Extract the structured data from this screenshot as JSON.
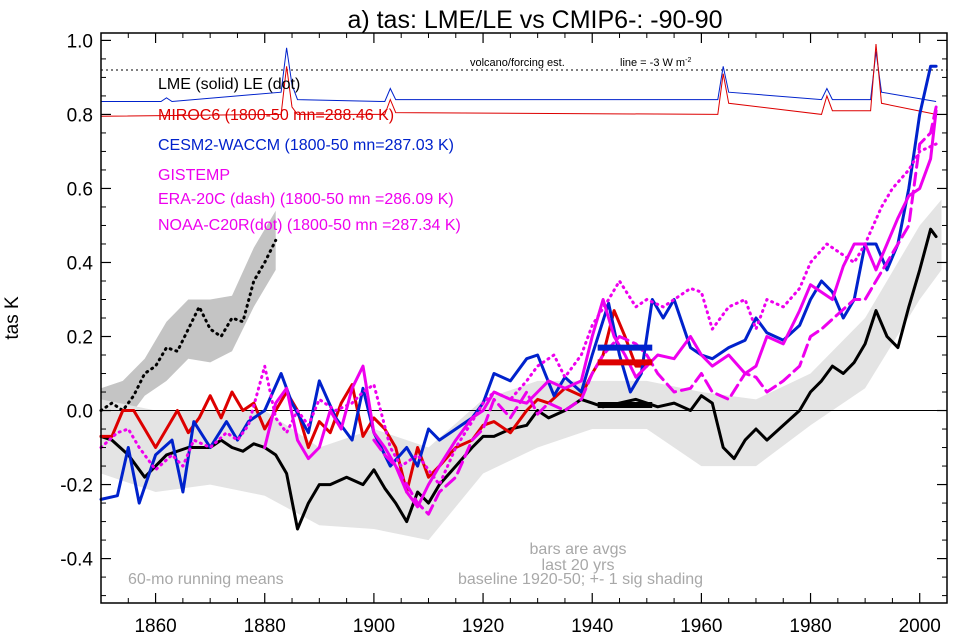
{
  "chart_data": {
    "type": "line",
    "title": "a) tas: LME/LE vs CMIP6-: -90-90",
    "xlabel": "",
    "ylabel": "tas K",
    "xlim": [
      1850,
      2005
    ],
    "ylim": [
      -0.52,
      1.02
    ],
    "x_ticks": [
      1860,
      1880,
      1900,
      1920,
      1940,
      1960,
      1980,
      2000
    ],
    "x_tick_labels": [
      "1860",
      "1880",
      "1900",
      "1920",
      "1940",
      "1960",
      "1980",
      "2000"
    ],
    "y_ticks": [
      -0.4,
      -0.2,
      0.0,
      0.2,
      0.4,
      0.6,
      0.8,
      1.0
    ],
    "y_tick_labels": [
      "-0.4",
      "-0.2",
      "0.0",
      "0.2",
      "0.4",
      "0.6",
      "0.8",
      "1.0"
    ],
    "legend": [
      {
        "text": "LME (solid)   LE (dot)",
        "color": "#000000"
      },
      {
        "text": "MIROC6 (1800-50 mn=288.46 K)",
        "color": "#dd0000"
      },
      {
        "text": "CESM2-WACCM (1800-50 mn=287.03 K)",
        "color": "#0022cc"
      },
      {
        "text": "GISTEMP",
        "color": "#ee00ee"
      },
      {
        "text": "ERA-20C (dash) (1800-50 mn =286.09 K)",
        "color": "#ee00ee"
      },
      {
        "text": "NOAA-C20R(dot) (1800-50 mn =287.34 K)",
        "color": "#ee00ee"
      }
    ],
    "annotations": {
      "volcano_label": "volcano/forcing est.",
      "line_label": "line = -3 W m",
      "line_label_sup": "-2",
      "bars_note": "bars are avgs",
      "bars_note2": "last 20 yrs",
      "running_means": "60-mo running means",
      "baseline": "baseline 1920-50; +- 1 sig shading"
    },
    "volcano_reference_y": 0.92,
    "series": [
      {
        "name": "LME",
        "style": "solid",
        "color": "#000000",
        "x": [
          1850,
          1852,
          1855,
          1858,
          1862,
          1866,
          1870,
          1872,
          1874,
          1876,
          1878,
          1880,
          1882,
          1884,
          1886,
          1888,
          1890,
          1892,
          1895,
          1898,
          1900,
          1902,
          1904,
          1906,
          1908,
          1910,
          1912,
          1915,
          1918,
          1920,
          1922,
          1925,
          1928,
          1930,
          1932,
          1935,
          1938,
          1940,
          1942,
          1945,
          1948,
          1950,
          1952,
          1955,
          1958,
          1960,
          1962,
          1964,
          1966,
          1968,
          1970,
          1972,
          1975,
          1978,
          1980,
          1982,
          1984,
          1986,
          1988,
          1990,
          1992,
          1994,
          1996,
          1998,
          2000,
          2002,
          2003
        ],
        "y": [
          -0.07,
          -0.08,
          -0.12,
          -0.18,
          -0.12,
          -0.1,
          -0.1,
          -0.08,
          -0.1,
          -0.11,
          -0.09,
          -0.1,
          -0.12,
          -0.17,
          -0.32,
          -0.25,
          -0.2,
          -0.2,
          -0.18,
          -0.2,
          -0.16,
          -0.21,
          -0.25,
          -0.3,
          -0.22,
          -0.25,
          -0.2,
          -0.15,
          -0.1,
          -0.07,
          -0.07,
          -0.05,
          -0.04,
          0.0,
          -0.02,
          0.0,
          0.03,
          0.02,
          0.01,
          0.02,
          0.03,
          0.02,
          0.01,
          0.02,
          0.0,
          0.04,
          0.02,
          -0.1,
          -0.13,
          -0.08,
          -0.05,
          -0.08,
          -0.04,
          0.0,
          0.05,
          0.08,
          0.12,
          0.1,
          0.13,
          0.18,
          0.27,
          0.2,
          0.17,
          0.28,
          0.38,
          0.49,
          0.47
        ]
      },
      {
        "name": "LE",
        "style": "dot",
        "color": "#000000",
        "x": [
          1850,
          1852,
          1854,
          1856,
          1858,
          1860,
          1862,
          1864,
          1866,
          1868,
          1870,
          1872,
          1874,
          1876,
          1878,
          1880,
          1882
        ],
        "y": [
          0.0,
          0.02,
          0.0,
          0.04,
          0.1,
          0.12,
          0.17,
          0.16,
          0.22,
          0.28,
          0.22,
          0.2,
          0.25,
          0.24,
          0.35,
          0.4,
          0.46
        ]
      },
      {
        "name": "MIROC6",
        "style": "solid",
        "color": "#dd0000",
        "x": [
          1850,
          1852,
          1854,
          1856,
          1858,
          1860,
          1862,
          1864,
          1866,
          1868,
          1870,
          1872,
          1874,
          1876,
          1878,
          1880,
          1882,
          1884,
          1886,
          1888,
          1890,
          1892,
          1894,
          1896,
          1898,
          1900,
          1902,
          1904,
          1906,
          1908,
          1910,
          1912,
          1915,
          1918,
          1920,
          1922,
          1925,
          1928,
          1930,
          1932,
          1935,
          1938,
          1940,
          1942,
          1944,
          1946,
          1948,
          1950
        ],
        "y": [
          -0.07,
          -0.07,
          0.0,
          0.0,
          -0.05,
          -0.1,
          -0.05,
          0.0,
          -0.06,
          -0.02,
          0.04,
          -0.02,
          0.05,
          0.0,
          0.02,
          -0.05,
          0.0,
          0.05,
          0.0,
          -0.1,
          -0.03,
          -0.06,
          0.02,
          0.07,
          -0.07,
          -0.02,
          -0.05,
          -0.1,
          -0.22,
          -0.1,
          -0.18,
          -0.15,
          -0.1,
          -0.08,
          -0.04,
          -0.03,
          -0.06,
          0.0,
          0.03,
          0.02,
          0.06,
          0.04,
          0.1,
          0.15,
          0.27,
          0.2,
          0.12,
          0.12
        ]
      },
      {
        "name": "CESM2-WACCM",
        "style": "solid",
        "color": "#0022cc",
        "x": [
          1850,
          1853,
          1855,
          1857,
          1860,
          1863,
          1865,
          1867,
          1870,
          1873,
          1875,
          1877,
          1880,
          1883,
          1885,
          1888,
          1890,
          1893,
          1896,
          1898,
          1900,
          1903,
          1906,
          1908,
          1910,
          1912,
          1915,
          1918,
          1920,
          1922,
          1925,
          1928,
          1930,
          1933,
          1935,
          1938,
          1940,
          1943,
          1945,
          1947,
          1949,
          1951,
          1953,
          1955,
          1958,
          1960,
          1962,
          1965,
          1968,
          1970,
          1972,
          1975,
          1978,
          1980,
          1982,
          1984,
          1986,
          1988,
          1990,
          1992,
          1994,
          1996,
          1998,
          2000,
          2002,
          2003
        ],
        "y": [
          -0.24,
          -0.23,
          -0.1,
          -0.25,
          -0.12,
          -0.08,
          -0.22,
          -0.03,
          -0.1,
          -0.03,
          -0.08,
          -0.03,
          0.0,
          0.1,
          0.02,
          -0.06,
          0.08,
          -0.02,
          -0.08,
          0.06,
          -0.06,
          -0.15,
          -0.1,
          -0.15,
          -0.05,
          -0.08,
          -0.05,
          -0.02,
          0.02,
          0.1,
          0.08,
          0.14,
          0.15,
          0.04,
          0.09,
          0.05,
          0.15,
          0.29,
          0.15,
          0.05,
          0.1,
          0.3,
          0.25,
          0.3,
          0.17,
          0.15,
          0.14,
          0.17,
          0.19,
          0.25,
          0.21,
          0.19,
          0.23,
          0.3,
          0.35,
          0.32,
          0.25,
          0.3,
          0.45,
          0.45,
          0.38,
          0.45,
          0.6,
          0.8,
          0.93,
          0.93
        ]
      },
      {
        "name": "GISTEMP",
        "style": "solid",
        "color": "#ee00ee",
        "x": [
          1880,
          1882,
          1884,
          1886,
          1888,
          1890,
          1892,
          1894,
          1896,
          1898,
          1900,
          1902,
          1904,
          1906,
          1908,
          1910,
          1912,
          1915,
          1918,
          1920,
          1922,
          1925,
          1928,
          1930,
          1932,
          1935,
          1938,
          1940,
          1942,
          1944,
          1946,
          1948,
          1950,
          1952,
          1955,
          1958,
          1960,
          1962,
          1965,
          1968,
          1970,
          1972,
          1975,
          1978,
          1980,
          1982,
          1984,
          1986,
          1988,
          1990,
          1992,
          1994,
          1996,
          1998,
          2000,
          2002,
          2003
        ],
        "y": [
          -0.1,
          0.02,
          0.06,
          -0.08,
          -0.13,
          -0.1,
          0.0,
          -0.05,
          0.06,
          0.12,
          -0.06,
          -0.1,
          -0.15,
          -0.22,
          -0.26,
          -0.2,
          -0.15,
          -0.08,
          -0.02,
          0.0,
          0.05,
          0.03,
          0.02,
          0.05,
          0.08,
          0.06,
          0.08,
          0.2,
          0.3,
          0.2,
          0.15,
          0.09,
          0.12,
          0.15,
          0.14,
          0.2,
          0.15,
          0.12,
          0.15,
          0.1,
          0.12,
          0.2,
          0.18,
          0.27,
          0.34,
          0.32,
          0.3,
          0.39,
          0.45,
          0.45,
          0.38,
          0.45,
          0.52,
          0.58,
          0.6,
          0.68,
          0.81
        ]
      },
      {
        "name": "ERA-20C",
        "style": "dash",
        "color": "#ee00ee",
        "x": [
          1900,
          1902,
          1904,
          1906,
          1908,
          1910,
          1912,
          1915,
          1918,
          1920,
          1922,
          1925,
          1928,
          1930,
          1932,
          1935,
          1938,
          1940,
          1942,
          1945,
          1948,
          1950,
          1952,
          1955,
          1958,
          1960,
          1962,
          1965,
          1968,
          1970,
          1972,
          1975,
          1978,
          1980,
          1982,
          1985,
          1988,
          1990,
          1992,
          1994,
          1996,
          1998,
          2000,
          2002,
          2003
        ],
        "y": [
          -0.08,
          -0.12,
          -0.15,
          -0.2,
          -0.25,
          -0.28,
          -0.22,
          -0.18,
          -0.08,
          -0.05,
          0.03,
          -0.02,
          0.05,
          -0.01,
          0.02,
          0.0,
          0.03,
          0.1,
          0.15,
          0.2,
          0.18,
          0.15,
          0.1,
          0.05,
          0.06,
          0.1,
          0.05,
          0.03,
          0.1,
          0.09,
          0.05,
          0.08,
          0.12,
          0.2,
          0.22,
          0.26,
          0.3,
          0.3,
          0.35,
          0.4,
          0.45,
          0.5,
          0.72,
          0.75,
          0.82
        ]
      },
      {
        "name": "NOAA-C20R",
        "style": "dot",
        "color": "#ee00ee",
        "x": [
          1850,
          1853,
          1855,
          1857,
          1860,
          1863,
          1865,
          1867,
          1870,
          1873,
          1875,
          1877,
          1880,
          1882,
          1884,
          1886,
          1888,
          1890,
          1893,
          1896,
          1898,
          1900,
          1903,
          1905,
          1908,
          1910,
          1912,
          1915,
          1918,
          1920,
          1922,
          1925,
          1928,
          1930,
          1933,
          1935,
          1938,
          1940,
          1943,
          1945,
          1948,
          1950,
          1953,
          1955,
          1958,
          1960,
          1962,
          1965,
          1968,
          1970,
          1972,
          1975,
          1978,
          1980,
          1983,
          1985,
          1988,
          1990,
          1993,
          1995,
          1998,
          2000,
          2003
        ],
        "y": [
          -0.1,
          -0.06,
          -0.05,
          -0.1,
          -0.16,
          -0.12,
          -0.15,
          -0.08,
          -0.1,
          -0.06,
          -0.08,
          -0.04,
          0.12,
          -0.02,
          -0.06,
          0.0,
          -0.04,
          0.03,
          0.0,
          0.02,
          0.05,
          0.07,
          -0.1,
          -0.15,
          -0.12,
          -0.16,
          -0.2,
          -0.1,
          -0.03,
          0.02,
          0.05,
          0.03,
          0.08,
          0.12,
          0.15,
          0.09,
          0.15,
          0.23,
          0.3,
          0.35,
          0.28,
          0.3,
          0.28,
          0.3,
          0.33,
          0.32,
          0.22,
          0.28,
          0.3,
          0.22,
          0.3,
          0.28,
          0.33,
          0.4,
          0.45,
          0.43,
          0.4,
          0.45,
          0.55,
          0.6,
          0.65,
          0.7,
          0.72
        ]
      }
    ],
    "bars": [
      {
        "name": "CESM2-WACCM avg",
        "color": "#0022cc",
        "x0": 1941,
        "x1": 1951,
        "y": 0.17
      },
      {
        "name": "MIROC6 avg",
        "color": "#dd0000",
        "x0": 1941,
        "x1": 1951,
        "y": 0.13
      },
      {
        "name": "LME avg",
        "color": "#000000",
        "x0": 1941,
        "x1": 1951,
        "y": 0.015
      }
    ],
    "shading": [
      {
        "name": "LE shading",
        "color": "#c4c4c4",
        "x": [
          1850,
          1854,
          1858,
          1862,
          1866,
          1870,
          1874,
          1878,
          1882
        ],
        "lo": [
          -0.06,
          -0.04,
          0.04,
          0.08,
          0.14,
          0.13,
          0.16,
          0.28,
          0.38
        ],
        "hi": [
          0.06,
          0.08,
          0.14,
          0.24,
          0.3,
          0.3,
          0.31,
          0.44,
          0.54
        ]
      },
      {
        "name": "LME shading",
        "color": "#e4e4e4",
        "x": [
          1850,
          1860,
          1870,
          1880,
          1890,
          1900,
          1910,
          1920,
          1930,
          1940,
          1950,
          1960,
          1970,
          1980,
          1990,
          2000,
          2004
        ],
        "lo": [
          -0.17,
          -0.22,
          -0.2,
          -0.23,
          -0.31,
          -0.32,
          -0.35,
          -0.17,
          -0.1,
          -0.05,
          -0.05,
          -0.15,
          -0.15,
          -0.04,
          0.06,
          0.3,
          0.38
        ],
        "hi": [
          0.03,
          0.0,
          0.0,
          0.0,
          -0.1,
          -0.05,
          -0.1,
          0.03,
          0.08,
          0.08,
          0.08,
          0.05,
          0.03,
          0.1,
          0.25,
          0.5,
          0.57
        ]
      }
    ],
    "forcing": [
      {
        "name": "forcing blue",
        "color": "#0022cc",
        "base": 0.835,
        "x": [
          1850,
          1861,
          1862,
          1863,
          1883,
          1884,
          1885,
          1886,
          1902,
          1903,
          1904,
          1963,
          1964,
          1965,
          1982,
          1983,
          1984,
          1991,
          1992,
          1993,
          2003
        ],
        "y": [
          0.835,
          0.835,
          0.845,
          0.835,
          0.86,
          0.98,
          0.88,
          0.84,
          0.835,
          0.87,
          0.84,
          0.84,
          0.93,
          0.86,
          0.84,
          0.87,
          0.84,
          0.84,
          0.97,
          0.86,
          0.835
        ]
      },
      {
        "name": "forcing red",
        "color": "#dd0000",
        "base": 0.795,
        "x": [
          1850,
          1883,
          1884,
          1885,
          1886,
          1902,
          1903,
          1904,
          1963,
          1964,
          1965,
          1982,
          1983,
          1984,
          1991,
          1992,
          1993,
          2003
        ],
        "y": [
          0.795,
          0.8,
          0.93,
          0.82,
          0.8,
          0.8,
          0.84,
          0.805,
          0.8,
          0.91,
          0.83,
          0.8,
          0.85,
          0.81,
          0.81,
          0.99,
          0.83,
          0.8
        ]
      }
    ]
  }
}
